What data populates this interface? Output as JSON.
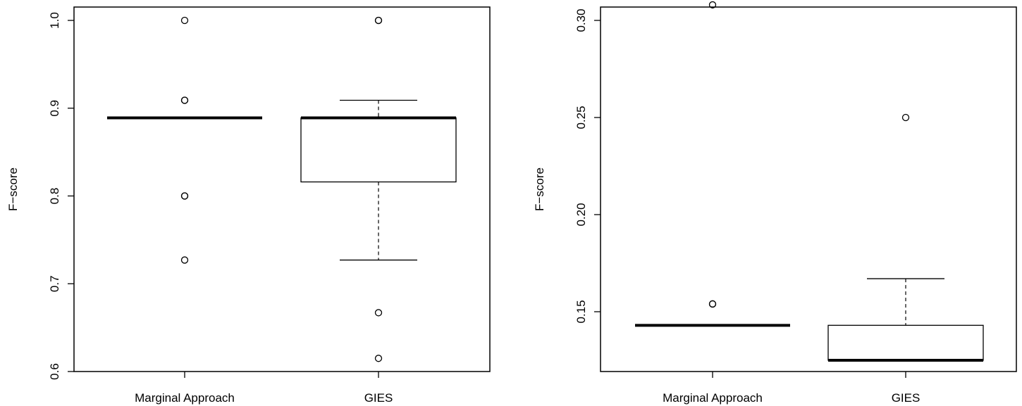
{
  "chart_data": [
    {
      "type": "boxplot",
      "ylabel": "F−score",
      "ylim": [
        0.6,
        1.0
      ],
      "yticks": [
        0.6,
        0.7,
        0.8,
        0.9,
        1.0
      ],
      "ytick_labels": [
        "0.6",
        "0.7",
        "0.8",
        "0.9",
        "1.0"
      ],
      "categories": [
        "Marginal Approach",
        "GIES"
      ],
      "boxes": [
        {
          "category": "Marginal Approach",
          "q1": 0.889,
          "median": 0.889,
          "q3": 0.889,
          "whisker_low": 0.889,
          "whisker_high": 0.889,
          "outliers": [
            1.0,
            0.909,
            0.909,
            0.8,
            0.8,
            0.727
          ]
        },
        {
          "category": "GIES",
          "q1": 0.816,
          "median": 0.889,
          "q3": 0.889,
          "whisker_low": 0.727,
          "whisker_high": 0.909,
          "outliers": [
            1.0,
            1.0,
            0.667,
            0.615
          ]
        }
      ]
    },
    {
      "type": "boxplot",
      "ylabel": "F−score",
      "ylim": [
        0.118,
        0.31
      ],
      "yticks": [
        0.15,
        0.2,
        0.25,
        0.3
      ],
      "ytick_labels": [
        "0.15",
        "0.20",
        "0.25",
        "0.30"
      ],
      "categories": [
        "Marginal Approach",
        "GIES"
      ],
      "boxes": [
        {
          "category": "Marginal Approach",
          "q1": 0.143,
          "median": 0.143,
          "q3": 0.143,
          "whisker_low": 0.143,
          "whisker_high": 0.143,
          "outliers": [
            0.308,
            0.154,
            0.154
          ]
        },
        {
          "category": "GIES",
          "q1": 0.125,
          "median": 0.125,
          "q3": 0.143,
          "whisker_low": 0.125,
          "whisker_high": 0.167,
          "outliers": [
            0.25
          ]
        }
      ]
    }
  ]
}
